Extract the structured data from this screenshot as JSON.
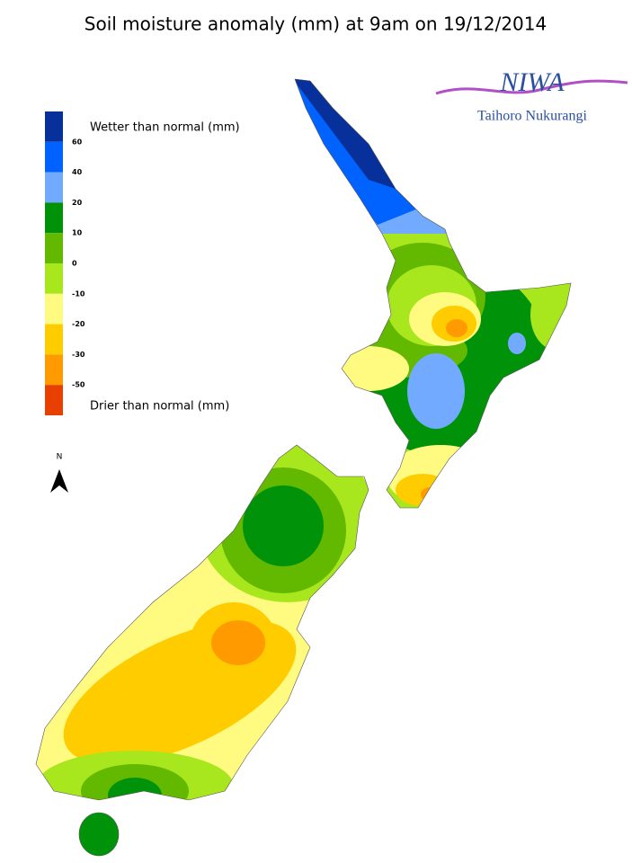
{
  "title": "Soil moisture anomaly (mm) at 9am on 19/12/2014",
  "logo": {
    "name": "NIWA",
    "subtitle": "Taihoro Nukurangi"
  },
  "north_label": "N",
  "legend": {
    "wetter_label": "Wetter than normal (mm)",
    "drier_label": "Drier than normal (mm)",
    "colors": [
      "#08309a",
      "#0062ff",
      "#72aaff",
      "#00930a",
      "#63b800",
      "#a8e61e",
      "#fffb80",
      "#ffcc00",
      "#ff9a00",
      "#e84000"
    ],
    "ticks": [
      "60",
      "40",
      "20",
      "10",
      "0",
      "-10",
      "-20",
      "-30",
      "-50"
    ]
  }
}
